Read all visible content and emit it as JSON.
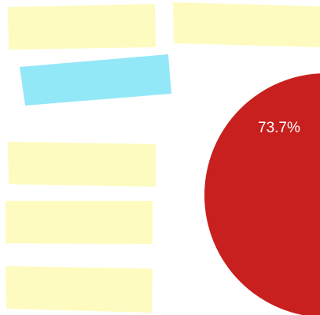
{
  "chart_data": {
    "type": "pie",
    "series": [
      {
        "label": "73.7%",
        "value": 73.7,
        "color": "#c8201e"
      }
    ]
  },
  "legend_blocks": {
    "yellow_color": "#fefbc0",
    "cyan_color": "#93e8f8"
  }
}
